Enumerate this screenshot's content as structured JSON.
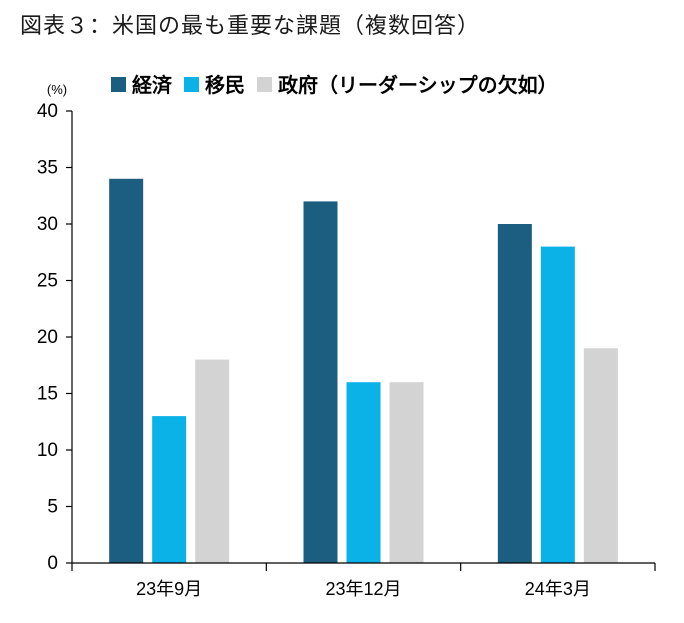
{
  "figure_title": "図表３：米国の最も重要な課題（複数回答）",
  "chart_data": {
    "type": "bar",
    "title": "図表３：米国の最も重要な課題（複数回答）",
    "ylabel": "(%)",
    "xlabel": "",
    "categories": [
      "23年9月",
      "23年12月",
      "24年3月"
    ],
    "series": [
      {
        "name": "経済",
        "color": "#1b5e80",
        "values": [
          34,
          32,
          30
        ]
      },
      {
        "name": "移民",
        "color": "#0bb2e8",
        "values": [
          13,
          16,
          28
        ]
      },
      {
        "name": "政府（リーダーシップの欠如）",
        "color": "#d3d3d3",
        "values": [
          18,
          16,
          19
        ]
      }
    ],
    "ylim": [
      0,
      40
    ],
    "yticks": [
      0,
      5,
      10,
      15,
      20,
      25,
      30,
      35,
      40
    ],
    "legend": "top",
    "grid": false
  }
}
